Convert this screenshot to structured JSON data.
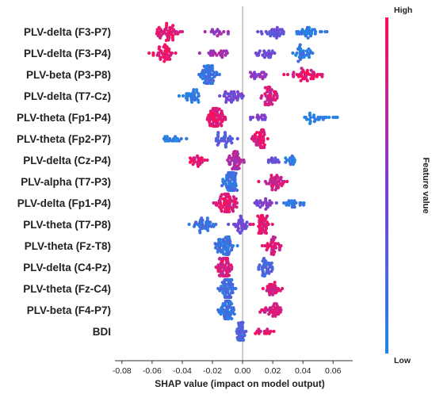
{
  "chart_data": {
    "type": "scatter",
    "subtype": "shap-beeswarm",
    "title": "",
    "xlabel": "SHAP value (impact on model output)",
    "ylabel": "",
    "xlim": [
      -0.082,
      0.073
    ],
    "xticks": [
      -0.08,
      -0.06,
      -0.04,
      -0.02,
      0.0,
      0.02,
      0.04,
      0.06
    ],
    "xtick_labels": [
      "-0.08",
      "-0.06",
      "-0.04",
      "-0.02",
      "0.00",
      "0.02",
      "0.04",
      "0.06"
    ],
    "zero_line": true,
    "grid": false,
    "colorbar": {
      "label": "Feature value",
      "high_label": "High",
      "low_label": "Low",
      "low_color": "#1e88e5",
      "high_color": "#ff0d57"
    },
    "features": [
      {
        "name": "PLV-delta (F3-P7)",
        "clusters": [
          {
            "x": -0.05,
            "s": 0.012,
            "n": 45,
            "fv": 0.88
          },
          {
            "x": -0.015,
            "s": 0.01,
            "n": 15,
            "fv": 0.6
          },
          {
            "x": 0.02,
            "s": 0.012,
            "n": 30,
            "fv": 0.35
          },
          {
            "x": 0.045,
            "s": 0.012,
            "n": 30,
            "fv": 0.12
          }
        ]
      },
      {
        "name": "PLV-delta (F3-P4)",
        "clusters": [
          {
            "x": -0.052,
            "s": 0.01,
            "n": 40,
            "fv": 0.9
          },
          {
            "x": -0.015,
            "s": 0.012,
            "n": 22,
            "fv": 0.65
          },
          {
            "x": 0.015,
            "s": 0.01,
            "n": 20,
            "fv": 0.4
          },
          {
            "x": 0.04,
            "s": 0.008,
            "n": 30,
            "fv": 0.12
          }
        ]
      },
      {
        "name": "PLV-beta (P3-P8)",
        "clusters": [
          {
            "x": -0.022,
            "s": 0.008,
            "n": 60,
            "fv": 0.15
          },
          {
            "x": 0.01,
            "s": 0.01,
            "n": 20,
            "fv": 0.55
          },
          {
            "x": 0.04,
            "s": 0.015,
            "n": 40,
            "fv": 0.9
          }
        ]
      },
      {
        "name": "PLV-delta (T7-Cz)",
        "clusters": [
          {
            "x": -0.035,
            "s": 0.01,
            "n": 30,
            "fv": 0.1
          },
          {
            "x": -0.008,
            "s": 0.01,
            "n": 35,
            "fv": 0.45
          },
          {
            "x": 0.018,
            "s": 0.007,
            "n": 45,
            "fv": 0.85
          }
        ]
      },
      {
        "name": "PLV-theta (Fp1-P4)",
        "clusters": [
          {
            "x": -0.018,
            "s": 0.007,
            "n": 70,
            "fv": 0.9
          },
          {
            "x": 0.012,
            "s": 0.008,
            "n": 15,
            "fv": 0.5
          },
          {
            "x": 0.05,
            "s": 0.012,
            "n": 25,
            "fv": 0.05
          }
        ]
      },
      {
        "name": "PLV-theta (Fp2-P7)",
        "clusters": [
          {
            "x": -0.045,
            "s": 0.01,
            "n": 18,
            "fv": 0.05
          },
          {
            "x": -0.012,
            "s": 0.008,
            "n": 30,
            "fv": 0.3
          },
          {
            "x": 0.012,
            "s": 0.007,
            "n": 50,
            "fv": 0.88
          }
        ]
      },
      {
        "name": "PLV-delta (Cz-P4)",
        "clusters": [
          {
            "x": -0.03,
            "s": 0.008,
            "n": 25,
            "fv": 0.9
          },
          {
            "x": -0.005,
            "s": 0.008,
            "n": 45,
            "fv": 0.7
          },
          {
            "x": 0.02,
            "s": 0.006,
            "n": 12,
            "fv": 0.4
          },
          {
            "x": 0.032,
            "s": 0.004,
            "n": 15,
            "fv": 0.1
          }
        ]
      },
      {
        "name": "PLV-alpha (T7-P3)",
        "clusters": [
          {
            "x": -0.008,
            "s": 0.006,
            "n": 70,
            "fv": 0.15
          },
          {
            "x": 0.022,
            "s": 0.01,
            "n": 40,
            "fv": 0.85
          }
        ]
      },
      {
        "name": "PLV-delta (Fp1-P4)",
        "clusters": [
          {
            "x": -0.01,
            "s": 0.008,
            "n": 70,
            "fv": 0.88
          },
          {
            "x": 0.015,
            "s": 0.01,
            "n": 25,
            "fv": 0.5
          },
          {
            "x": 0.035,
            "s": 0.01,
            "n": 20,
            "fv": 0.1
          }
        ]
      },
      {
        "name": "PLV-theta (T7-P8)",
        "clusters": [
          {
            "x": -0.025,
            "s": 0.01,
            "n": 35,
            "fv": 0.15
          },
          {
            "x": -0.002,
            "s": 0.008,
            "n": 30,
            "fv": 0.45
          },
          {
            "x": 0.012,
            "s": 0.007,
            "n": 45,
            "fv": 0.9
          }
        ]
      },
      {
        "name": "PLV-theta (Fz-T8)",
        "clusters": [
          {
            "x": -0.012,
            "s": 0.007,
            "n": 55,
            "fv": 0.15
          },
          {
            "x": 0.02,
            "s": 0.008,
            "n": 35,
            "fv": 0.85
          }
        ]
      },
      {
        "name": "PLV-delta (C4-Pz)",
        "clusters": [
          {
            "x": -0.012,
            "s": 0.006,
            "n": 60,
            "fv": 0.85
          },
          {
            "x": 0.015,
            "s": 0.008,
            "n": 35,
            "fv": 0.25
          }
        ]
      },
      {
        "name": "PLV-theta (Fz-C4)",
        "clusters": [
          {
            "x": -0.01,
            "s": 0.006,
            "n": 65,
            "fv": 0.2
          },
          {
            "x": 0.02,
            "s": 0.008,
            "n": 30,
            "fv": 0.85
          }
        ]
      },
      {
        "name": "PLV-beta (F4-P7)",
        "clusters": [
          {
            "x": -0.01,
            "s": 0.007,
            "n": 60,
            "fv": 0.15
          },
          {
            "x": 0.02,
            "s": 0.008,
            "n": 35,
            "fv": 0.85
          }
        ]
      },
      {
        "name": "BDI",
        "clusters": [
          {
            "x": -0.001,
            "s": 0.004,
            "n": 40,
            "fv": 0.25
          },
          {
            "x": 0.015,
            "s": 0.008,
            "n": 15,
            "fv": 0.9
          }
        ]
      }
    ]
  }
}
